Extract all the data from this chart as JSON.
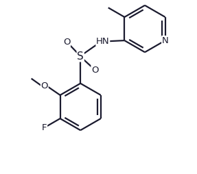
{
  "bg_color": "#ffffff",
  "line_color": "#1a1a2e",
  "bond_lw": 1.6,
  "font_size": 9.5,
  "figsize": [
    2.87,
    2.54
  ],
  "dpi": 100,
  "xlim": [
    0.0,
    5.2
  ],
  "ylim": [
    0.0,
    4.8
  ]
}
